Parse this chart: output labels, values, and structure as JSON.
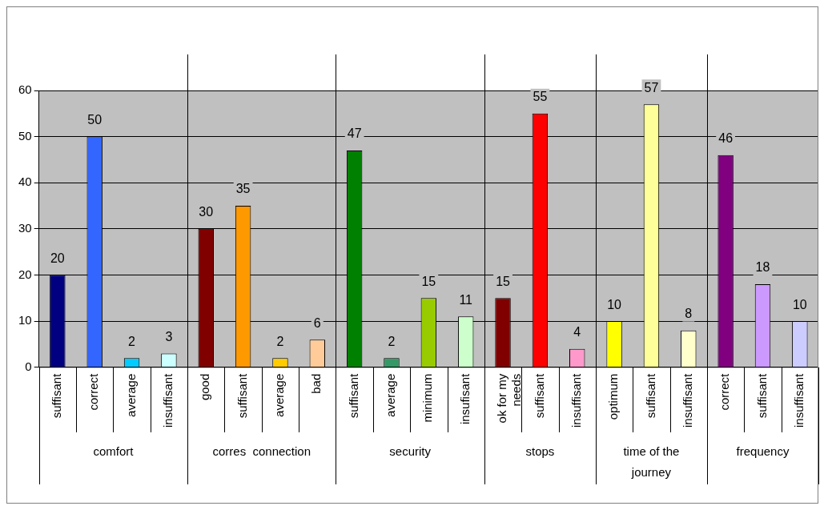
{
  "chart_data": {
    "type": "bar",
    "categories": [
      "suffisant",
      "correct",
      "average",
      "insuffisant",
      "good",
      "suffisant",
      "average",
      "bad",
      "suffisant",
      "average",
      "minimum",
      "insufisant",
      "ok for my needs",
      "suffisant",
      "insuffisant",
      "optimum",
      "suffisant",
      "insuffisant",
      "correct",
      "suffisant",
      "insuffisant"
    ],
    "series": [
      {
        "colors": [
          "#000080",
          "#3366ff",
          "#00ccff",
          "#ccffff",
          null,
          null,
          null,
          null,
          null,
          null,
          null,
          null,
          null,
          null,
          null,
          null,
          null,
          null,
          null,
          null,
          null
        ],
        "values": [
          20,
          50,
          2,
          3,
          null,
          null,
          null,
          null,
          null,
          null,
          null,
          null,
          null,
          null,
          null,
          null,
          null,
          null,
          null,
          null,
          null
        ]
      },
      {
        "colors": [
          null,
          null,
          null,
          null,
          "#800000",
          "#ff9900",
          "#ffcc00",
          "#ffcc99",
          null,
          null,
          null,
          null,
          null,
          null,
          null,
          null,
          null,
          null,
          null,
          null,
          null
        ],
        "values": [
          null,
          null,
          null,
          null,
          30,
          35,
          2,
          6,
          null,
          null,
          null,
          null,
          null,
          null,
          null,
          null,
          null,
          null,
          null,
          null,
          null
        ]
      },
      {
        "colors": [
          null,
          null,
          null,
          null,
          null,
          null,
          null,
          null,
          "#008000",
          "#339966",
          "#99cc00",
          "#ccffcc",
          null,
          null,
          null,
          null,
          null,
          null,
          null,
          null,
          null
        ],
        "values": [
          null,
          null,
          null,
          null,
          null,
          null,
          null,
          null,
          47,
          2,
          15,
          11,
          null,
          null,
          null,
          null,
          null,
          null,
          null,
          null,
          null
        ]
      },
      {
        "colors": [
          null,
          null,
          null,
          null,
          null,
          null,
          null,
          null,
          null,
          null,
          null,
          null,
          "#800000",
          "#ff0000",
          "#ff99cc",
          null,
          null,
          null,
          null,
          null,
          null
        ],
        "values": [
          null,
          null,
          null,
          null,
          null,
          null,
          null,
          null,
          null,
          null,
          null,
          null,
          15,
          55,
          4,
          null,
          null,
          null,
          null,
          null,
          null
        ]
      },
      {
        "colors": [
          null,
          null,
          null,
          null,
          null,
          null,
          null,
          null,
          null,
          null,
          null,
          null,
          null,
          null,
          null,
          "#ffff00",
          "#ffff99",
          "#ffffcc",
          null,
          null,
          null
        ],
        "values": [
          null,
          null,
          null,
          null,
          null,
          null,
          null,
          null,
          null,
          null,
          null,
          null,
          null,
          null,
          null,
          10,
          57,
          8,
          null,
          null,
          null
        ]
      },
      {
        "colors": [
          null,
          null,
          null,
          null,
          null,
          null,
          null,
          null,
          null,
          null,
          null,
          null,
          null,
          null,
          null,
          null,
          null,
          null,
          "#800080",
          "#cc99ff",
          "#ccccff"
        ],
        "values": [
          null,
          null,
          null,
          null,
          null,
          null,
          null,
          null,
          null,
          null,
          null,
          null,
          null,
          null,
          null,
          null,
          null,
          null,
          46,
          18,
          10
        ]
      }
    ],
    "annotations": [
      "comfort",
      "corres  connection",
      "security",
      "stops",
      "time of the journey",
      "frequency"
    ],
    "ylim": [
      0,
      60
    ],
    "yticks": [
      0,
      10,
      20,
      30,
      40,
      50,
      60
    ],
    "grid": "y",
    "legend": false,
    "data_labels": true
  }
}
